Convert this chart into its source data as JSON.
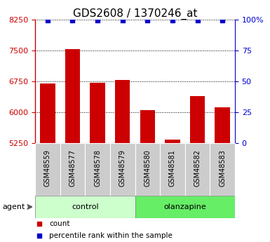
{
  "title": "GDS2608 / 1370246_at",
  "samples": [
    "GSM48559",
    "GSM48577",
    "GSM48578",
    "GSM48579",
    "GSM48580",
    "GSM48581",
    "GSM48582",
    "GSM48583"
  ],
  "counts": [
    6700,
    7530,
    6710,
    6780,
    6040,
    5330,
    6390,
    6120
  ],
  "percentile_ranks": [
    99,
    99,
    99,
    99,
    99,
    99,
    99,
    99
  ],
  "groups": [
    "control",
    "control",
    "control",
    "control",
    "olanzapine",
    "olanzapine",
    "olanzapine",
    "olanzapine"
  ],
  "group_label": "agent",
  "bar_color": "#cc0000",
  "percentile_color": "#0000cc",
  "ylim_left": [
    5250,
    8250
  ],
  "ylim_right": [
    0,
    100
  ],
  "yticks_left": [
    5250,
    6000,
    6750,
    7500,
    8250
  ],
  "yticks_right": [
    0,
    25,
    50,
    75,
    100
  ],
  "ytick_labels_right": [
    "0",
    "25",
    "50",
    "75",
    "100%"
  ],
  "control_color": "#ccffcc",
  "olanzapine_color": "#66ee66",
  "xticklabel_bg": "#cccccc",
  "grid_color": "#000000",
  "title_fontsize": 11,
  "axis_fontsize": 8,
  "tick_fontsize": 8,
  "legend_count_color": "#cc0000",
  "legend_percentile_color": "#0000cc",
  "fig_bg": "#ffffff"
}
